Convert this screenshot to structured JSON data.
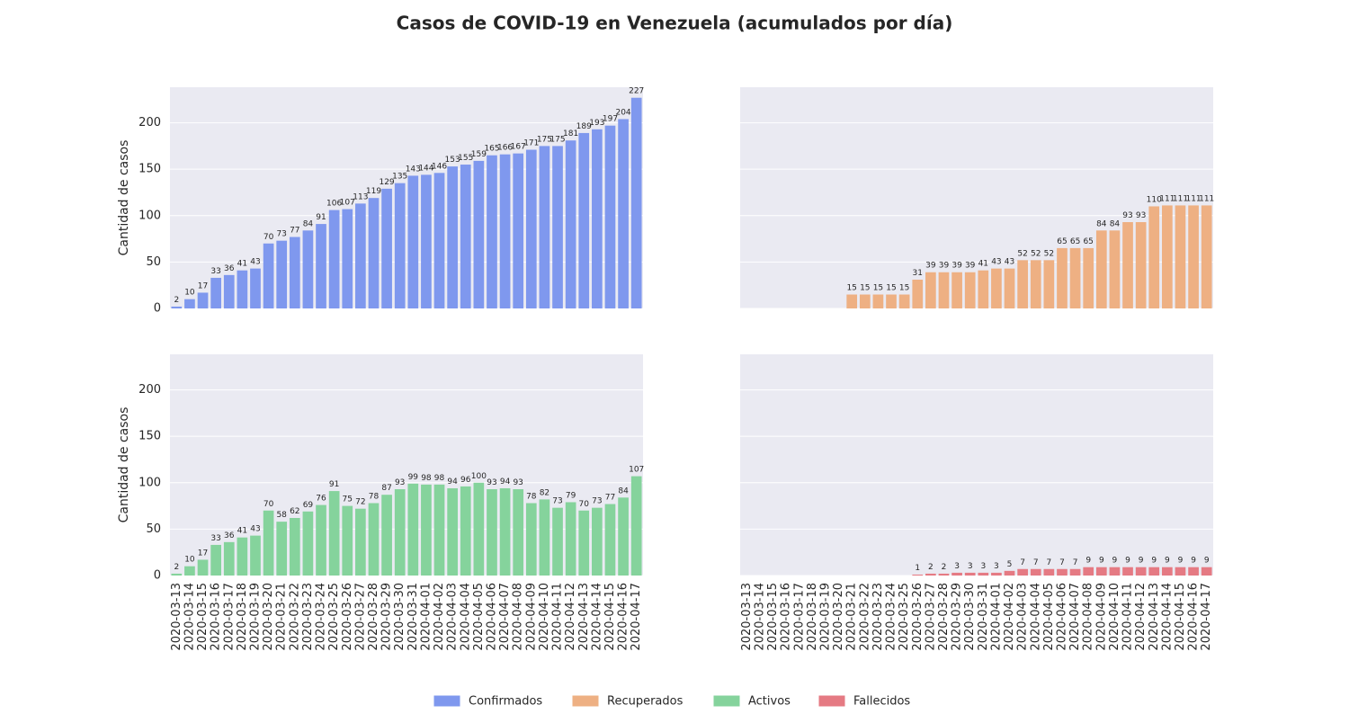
{
  "chart_data": {
    "type": "bar",
    "title": "Casos de COVID-19 en Venezuela (acumulados por día)",
    "ylabel": "Cantidad de casos",
    "categories": [
      "2020-03-13",
      "2020-03-14",
      "2020-03-15",
      "2020-03-16",
      "2020-03-17",
      "2020-03-18",
      "2020-03-19",
      "2020-03-20",
      "2020-03-21",
      "2020-03-22",
      "2020-03-23",
      "2020-03-24",
      "2020-03-25",
      "2020-03-26",
      "2020-03-27",
      "2020-03-28",
      "2020-03-29",
      "2020-03-30",
      "2020-03-31",
      "2020-04-01",
      "2020-04-02",
      "2020-04-03",
      "2020-04-04",
      "2020-04-05",
      "2020-04-06",
      "2020-04-07",
      "2020-04-08",
      "2020-04-09",
      "2020-04-10",
      "2020-04-11",
      "2020-04-12",
      "2020-04-13",
      "2020-04-14",
      "2020-04-15",
      "2020-04-16",
      "2020-04-17"
    ],
    "ylim": [
      0,
      238.35
    ],
    "yticks": [
      0,
      50,
      100,
      150,
      200
    ],
    "grid": true,
    "legend": "bottom",
    "series": [
      {
        "name": "Confirmados",
        "color": "#7f98ee",
        "values": [
          2,
          10,
          17,
          33,
          36,
          41,
          43,
          70,
          73,
          77,
          84,
          91,
          106,
          107,
          113,
          119,
          129,
          135,
          143,
          144,
          146,
          153,
          155,
          159,
          165,
          166,
          167,
          171,
          175,
          175,
          181,
          189,
          193,
          197,
          204,
          227
        ]
      },
      {
        "name": "Recuperados",
        "color": "#eeb083",
        "values": [
          0,
          0,
          0,
          0,
          0,
          0,
          0,
          0,
          15,
          15,
          15,
          15,
          15,
          31,
          39,
          39,
          39,
          39,
          41,
          43,
          43,
          52,
          52,
          52,
          65,
          65,
          65,
          84,
          84,
          93,
          93,
          110,
          111,
          111,
          111,
          111
        ]
      },
      {
        "name": "Activos",
        "color": "#85d39c",
        "values": [
          2,
          10,
          17,
          33,
          36,
          41,
          43,
          70,
          58,
          62,
          69,
          76,
          91,
          75,
          72,
          78,
          87,
          93,
          99,
          98,
          98,
          94,
          96,
          100,
          93,
          94,
          93,
          78,
          82,
          73,
          79,
          70,
          73,
          77,
          84,
          107
        ]
      },
      {
        "name": "Fallecidos",
        "color": "#e57a83",
        "values": [
          0,
          0,
          0,
          0,
          0,
          0,
          0,
          0,
          0,
          0,
          0,
          0,
          0,
          1,
          2,
          2,
          3,
          3,
          3,
          3,
          5,
          7,
          7,
          7,
          7,
          7,
          9,
          9,
          9,
          9,
          9,
          9,
          9,
          9,
          9,
          9
        ]
      }
    ]
  }
}
